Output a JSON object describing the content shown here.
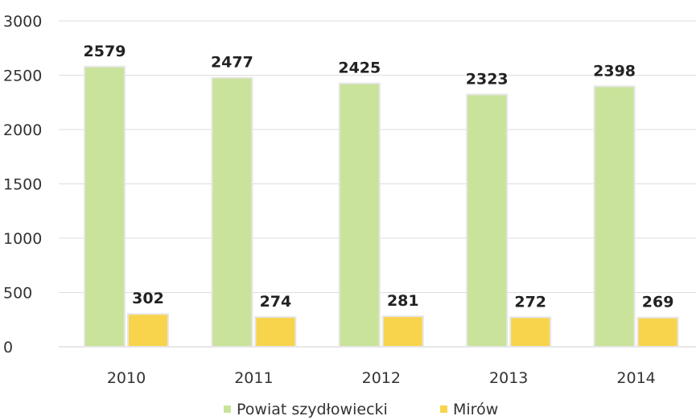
{
  "chart_data": {
    "type": "bar",
    "categories": [
      "2010",
      "2011",
      "2012",
      "2013",
      "2014"
    ],
    "series": [
      {
        "name": "Powiat szydłowiecki",
        "values": [
          2579,
          2477,
          2425,
          2323,
          2398
        ],
        "color": "#c9e39a"
      },
      {
        "name": "Mirów",
        "values": [
          302,
          274,
          281,
          272,
          269
        ],
        "color": "#f7d44c"
      }
    ],
    "y_ticks": [
      "0",
      "500",
      "1000",
      "1500",
      "2000",
      "2500",
      "3000"
    ],
    "ylim": [
      0,
      3000
    ],
    "grid": true,
    "legend_position": "bottom"
  }
}
